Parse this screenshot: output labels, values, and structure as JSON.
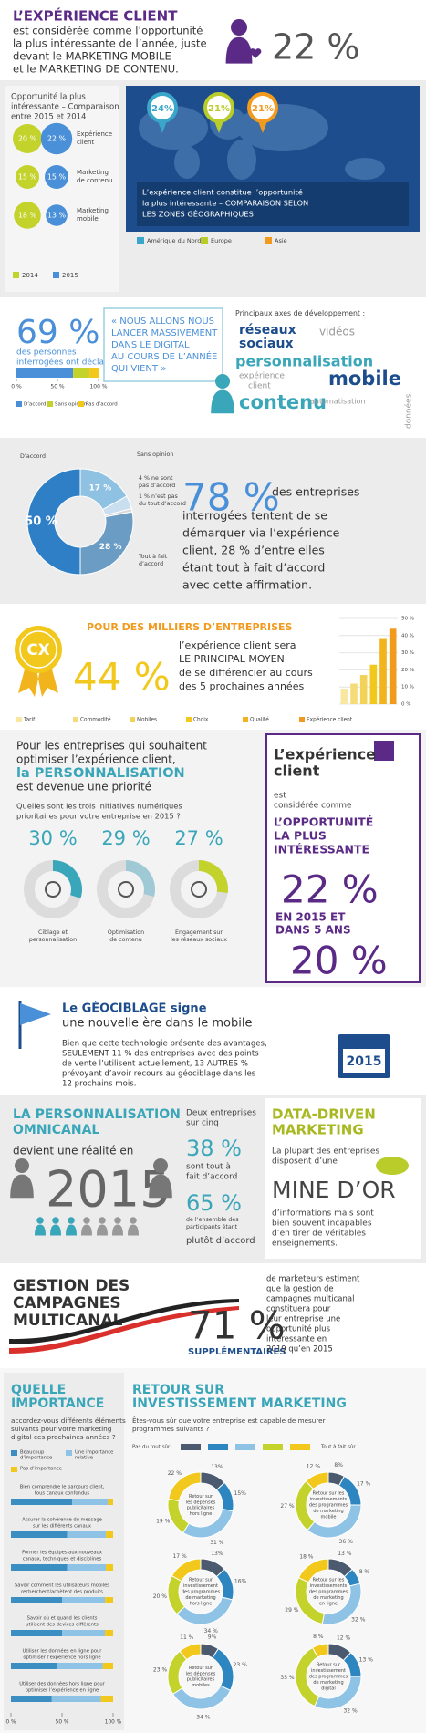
{
  "header": {
    "title": "L’EXPÉRIENCE CLIENT",
    "lines": [
      "est considérée comme l’opportunité",
      "la plus intéressante de l’année, juste",
      "devant le MARKETING MOBILE",
      "et le MARKETING DE CONTENU."
    ],
    "stat": "22 %"
  },
  "comparison": {
    "title_lines": [
      "Opportunité la plus",
      "intéressante – Comparaison",
      "entre 2015 et 2014"
    ],
    "legend": [
      "2014",
      "2015"
    ],
    "colors": [
      "#c4d22c",
      "#4a90d9"
    ],
    "rows": [
      {
        "label_lines": [
          "Expérience",
          "client"
        ],
        "values": [
          20,
          22
        ],
        "value_labels": [
          "20 %",
          "22 %"
        ]
      },
      {
        "label_lines": [
          "Marketing",
          "de contenu"
        ],
        "values": [
          15,
          15
        ],
        "value_labels": [
          "15 %",
          "15 %"
        ]
      },
      {
        "label_lines": [
          "Marketing",
          "mobile"
        ],
        "values": [
          18,
          13
        ],
        "value_labels": [
          "18 %",
          "13 %"
        ]
      }
    ]
  },
  "geo": {
    "values": [
      24,
      21,
      21
    ],
    "value_labels": [
      "24%",
      "21%",
      "21%"
    ],
    "colors": [
      "#3aa6c9",
      "#b9cc2a",
      "#f29a1d"
    ],
    "legend": [
      "Amérique du Nord",
      "Europe",
      "Asie"
    ],
    "caption_lines": [
      "L’expérience client constitue l’opportunité",
      "la plus intéressante – COMPARAISON SELON",
      "LES ZONES GÉOGRAPHIQUES"
    ]
  },
  "survey": {
    "stat": "69 %",
    "desc_lines": [
      "des personnes",
      "interrogées ont déclaré"
    ],
    "values": [
      69,
      20,
      11
    ],
    "colors": [
      "#4a90d9",
      "#c4d22c",
      "#f2c81c"
    ],
    "legend": [
      "D’accord",
      "Sans opinion",
      "Pas d’accord"
    ],
    "xlim": [
      0,
      100
    ],
    "xticks": [
      {
        "value": 0,
        "label": "0 %"
      },
      {
        "value": 50,
        "label": "50 %"
      },
      {
        "value": 100,
        "label": "100 %"
      }
    ]
  },
  "quote": {
    "lines": [
      "« NOUS ALLONS NOUS",
      "LANCER MASSIVEMENT",
      "DANS LE DIGITAL",
      "AU COURS DE L’ANNÉE",
      "QUI VIENT »"
    ]
  },
  "axes": {
    "title": "Principaux axes de développement :",
    "words": [
      "réseaux",
      "sociaux",
      "vidéos",
      "personnalisation",
      "expérience",
      "client",
      "mobile",
      "contenu",
      "automatisation",
      "données"
    ]
  },
  "agreement": {
    "segments": [
      {
        "label_lines": [
          "Sans opinion"
        ],
        "value": 17,
        "value_label": "17 %",
        "color": "#8fc1e3"
      },
      {
        "label_lines": [
          "4 % ne sont",
          "pas d’accord"
        ],
        "value": 4,
        "color": "#c9dff0"
      },
      {
        "label_lines": [
          "1 % n’est pas",
          "du tout d’accord"
        ],
        "value": 1,
        "color": "#d8d8d8"
      },
      {
        "label_lines": [
          "Tout à fait",
          "d’accord"
        ],
        "value": 28,
        "value_label": "28 %",
        "color": "#6a9cc4"
      },
      {
        "label_lines": [
          "D’accord"
        ],
        "value": 50,
        "value_label": "50 %",
        "color": "#2f7fc6"
      }
    ],
    "stat": "78 %",
    "lines": [
      "des entreprises",
      "interrogées tentent de se",
      "démarquer via l’expérience",
      "client, 28 % d’entre elles",
      "étant tout à fait d’accord",
      "avec cette affirmation."
    ]
  },
  "differentiation": {
    "badge": "CX",
    "title": "POUR DES MILLIERS D’ENTREPRISES",
    "stat": "44 %",
    "lines": [
      "l’expérience client sera",
      "LE PRINCIPAL MOYEN",
      "de se différencier au cours",
      "des 5 prochaines années"
    ],
    "chart_data": {
      "type": "bar",
      "categories": [
        "Tarif",
        "Commodité",
        "Mobiles",
        "Choix",
        "Qualité",
        "Expérience client"
      ],
      "values": [
        9,
        12,
        17,
        23,
        38,
        44
      ],
      "colors": [
        "#f7e7a0",
        "#f5dc7a",
        "#f3d25a",
        "#f2c81c",
        "#f2b41c",
        "#f29a1d"
      ],
      "ylim": [
        0,
        50
      ],
      "yticks": [
        {
          "value": 0,
          "label": "0 %"
        },
        {
          "value": 10,
          "label": "10 %"
        },
        {
          "value": 20,
          "label": "20 %"
        },
        {
          "value": 30,
          "label": "30 %"
        },
        {
          "value": 40,
          "label": "40 %"
        },
        {
          "value": 50,
          "label": "50 %"
        }
      ]
    }
  },
  "personalization": {
    "intro_lines": [
      "Pour les entreprises qui souhaitent",
      "optimiser l’expérience client,",
      "la PERSONNALISATION",
      "est devenue une priorité"
    ],
    "question_lines": [
      "Quelles sont les trois initiatives numériques",
      "prioritaires pour votre entreprise en 2015 ?"
    ],
    "colors": [
      "#3aa6b9",
      "#9fc9d4",
      "#c4d22c"
    ],
    "items": [
      {
        "value": 30,
        "value_label": "30 %",
        "caption_lines": [
          "Ciblage et",
          "personnalisation"
        ]
      },
      {
        "value": 29,
        "value_label": "29 %",
        "caption_lines": [
          "Optimisation",
          "de contenu"
        ]
      },
      {
        "value": 27,
        "value_label": "27 %",
        "caption_lines": [
          "Engagement sur",
          "les réseaux sociaux"
        ]
      }
    ]
  },
  "opportunity": {
    "lines": [
      "L’expérience",
      "client"
    ],
    "sub_lines": [
      "est",
      "considérée comme"
    ],
    "highlight_lines": [
      "L’OPPORTUNITÉ",
      "LA PLUS",
      "INTÉRESSANTE"
    ],
    "stat_now": "22 %",
    "middle_lines": [
      "EN 2015 ET",
      "DANS 5 ANS"
    ],
    "stat_later": "20 %"
  },
  "geotargeting": {
    "title_lines": [
      "Le GÉOCIBLAGE signe",
      "une nouvelle ère dans le mobile"
    ],
    "body_lines": [
      "Bien que cette technologie présente des avantages,",
      "SEULEMENT 11 % des entreprises avec des points",
      "de vente l’utilisent actuellement, 13 AUTRES %",
      "prévoyant d’avoir recours au géociblage dans les",
      "12 prochains mois."
    ],
    "calendar": "2015"
  },
  "omnichannel": {
    "title_lines": [
      "LA PERSONNALISATION",
      "OMNICANAL"
    ],
    "sub": "devient une réalité en",
    "year": "2015",
    "lead_lines": [
      "Deux entreprises",
      "sur cinq"
    ],
    "stat_a": "38 %",
    "a_lines": [
      "sont tout à",
      "fait d’accord"
    ],
    "stat_b": "65 %",
    "b_lines": [
      "de l’ensemble des",
      "participants étant"
    ],
    "b_end": "plutôt d’accord"
  },
  "data_driven": {
    "title_lines": [
      "DATA-DRIVEN",
      "MARKETING"
    ],
    "lines": [
      "La plupart des entreprises",
      "disposent d’une"
    ],
    "highlight": "MINE D’OR",
    "end_lines": [
      "d’informations mais sont",
      "bien souvent incapables",
      "d’en tirer de véritables",
      "enseignements."
    ]
  },
  "multichannel": {
    "title_lines": [
      "GESTION DES",
      "CAMPAGNES",
      "MULTICANAL"
    ],
    "stat": "71 %",
    "tag": "SUPPLÉMENTAIRES",
    "lines": [
      "de marketeurs estiment",
      "que la gestion de",
      "campagnes multicanal",
      "constituera pour",
      "leur entreprise une",
      "opportunité plus",
      "intéressante en",
      "2019 qu’en 2015"
    ]
  },
  "importance": {
    "title_lines": [
      "QUELLE",
      "IMPORTANCE"
    ],
    "question_lines": [
      "accordez-vous différents éléments",
      "suivants pour votre marketing",
      "digital ces prochaines années ?"
    ],
    "legend": [
      [
        "Beaucoup",
        "d’importance"
      ],
      [
        "Une importance",
        "relative"
      ],
      [
        "Pas d’importance"
      ]
    ],
    "colors": [
      "#3a8ec1",
      "#8ec3e6",
      "#f2c81c"
    ],
    "xlim": [
      0,
      100
    ],
    "xticks": [
      {
        "value": 0,
        "label": "0 %"
      },
      {
        "value": 50,
        "label": "50 %"
      },
      {
        "value": 100,
        "label": "100 %"
      }
    ],
    "rows": [
      {
        "label_lines": [
          "Bien comprendre le parcours client,",
          "tous canaux confondus"
        ],
        "values": [
          60,
          35,
          5
        ]
      },
      {
        "label_lines": [
          "Assurer la cohérence du message",
          "sur les différents canaux"
        ],
        "values": [
          55,
          38,
          7
        ]
      },
      {
        "label_lines": [
          "Former les équipes aux nouveaux",
          "canaux, techniques et disciplines"
        ],
        "values": [
          55,
          38,
          7
        ]
      },
      {
        "label_lines": [
          "Savoir comment les utilisateurs mobiles",
          "recherchent/achètent des produits"
        ],
        "values": [
          50,
          42,
          8
        ]
      },
      {
        "label_lines": [
          "Savoir où et quand les clients",
          "utilisent des devices différents"
        ],
        "values": [
          50,
          42,
          8
        ]
      },
      {
        "label_lines": [
          "Utiliser les données en ligne pour",
          "optimiser l’expérience hors ligne"
        ],
        "values": [
          45,
          45,
          10
        ]
      },
      {
        "label_lines": [
          "Utiliser des données hors ligne pour",
          "optimiser l’expérience en ligne"
        ],
        "values": [
          40,
          48,
          12
        ]
      }
    ]
  },
  "roi": {
    "title_lines": [
      "RETOUR SUR",
      "INVESTISSEMENT MARKETING"
    ],
    "question_lines": [
      "Êtes-vous sûr que votre entreprise est capable de mesurer",
      "programmes suivants ?"
    ],
    "scale_labels": [
      "Pas du tout sûr",
      "Tout à fait sûr"
    ],
    "colors": [
      "#4b5a6e",
      "#2e86c1",
      "#8ec3e6",
      "#c4d22c",
      "#f2c81c"
    ],
    "donuts": [
      {
        "label_lines": [
          "Retour sur",
          "les dépenses",
          "publicitaires",
          "hors ligne"
        ],
        "values": [
          13,
          15,
          31,
          19,
          22
        ],
        "value_labels": [
          "13%",
          "15%",
          "31 %",
          "19 %",
          "22 %"
        ]
      },
      {
        "label_lines": [
          "Retour sur les",
          "investissements",
          "des programmes",
          "de marketing",
          "mobile"
        ],
        "values": [
          8,
          17,
          36,
          27,
          12
        ],
        "value_labels": [
          "8%",
          "17 %",
          "36 %",
          "27 %",
          "12 %"
        ]
      },
      {
        "label_lines": [
          "Retour sur",
          "investissement",
          "des programmes",
          "de marketing",
          "hors ligne"
        ],
        "values": [
          13,
          16,
          34,
          20,
          17
        ],
        "value_labels": [
          "13%",
          "16%",
          "34 %",
          "20 %",
          "17 %"
        ]
      },
      {
        "label_lines": [
          "Retour sur les",
          "investissements",
          "des programmes",
          "de marketing",
          "en ligne"
        ],
        "values": [
          13,
          8,
          32,
          29,
          18
        ],
        "value_labels": [
          "13 %",
          "8 %",
          "32 %",
          "29 %",
          "18 %"
        ]
      },
      {
        "label_lines": [
          "Retour sur",
          "les dépenses",
          "publicitaires",
          "mobiles"
        ],
        "values": [
          9,
          23,
          34,
          23,
          11
        ],
        "value_labels": [
          "9%",
          "23 %",
          "34 %",
          "23 %",
          "11 %"
        ]
      },
      {
        "label_lines": [
          "Retour sur",
          "investissement",
          "des programmes",
          "de marketing",
          "digital"
        ],
        "values": [
          12,
          13,
          32,
          35,
          8
        ],
        "value_labels": [
          "12 %",
          "13 %",
          "32 %",
          "35 %",
          "8 %"
        ]
      }
    ]
  }
}
